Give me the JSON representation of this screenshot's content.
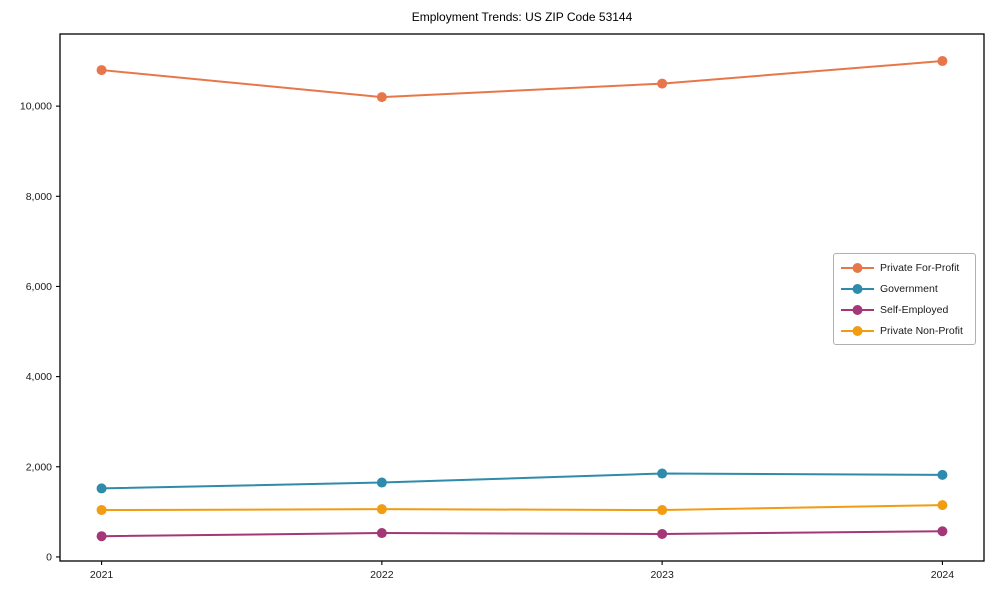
{
  "figure": {
    "title": "Employment Trends: US ZIP Code 53144"
  },
  "chart_data": {
    "type": "line",
    "title": "Employment Trends: US ZIP Code 53144",
    "xlabel": "",
    "ylabel": "",
    "categories": [
      "2021",
      "2022",
      "2023",
      "2024"
    ],
    "series": [
      {
        "name": "Private For-Profit",
        "color": "#e7774a",
        "values": [
          10800,
          10200,
          10500,
          11000
        ]
      },
      {
        "name": "Government",
        "color": "#2e8bab",
        "values": [
          1520,
          1650,
          1850,
          1820
        ]
      },
      {
        "name": "Self-Employed",
        "color": "#a53778",
        "values": [
          460,
          530,
          510,
          570
        ]
      },
      {
        "name": "Private Non-Profit",
        "color": "#f19c12",
        "values": [
          1040,
          1060,
          1040,
          1150
        ]
      }
    ],
    "yticks": {
      "values": [
        0,
        2000,
        4000,
        6000,
        8000,
        10000
      ],
      "labels": [
        "0",
        "2,000",
        "4,000",
        "6,000",
        "8,000",
        "10,000"
      ]
    },
    "ylim": [
      -90,
      11600
    ],
    "grid": false,
    "marker": "circle",
    "legend_position": "center-right"
  }
}
